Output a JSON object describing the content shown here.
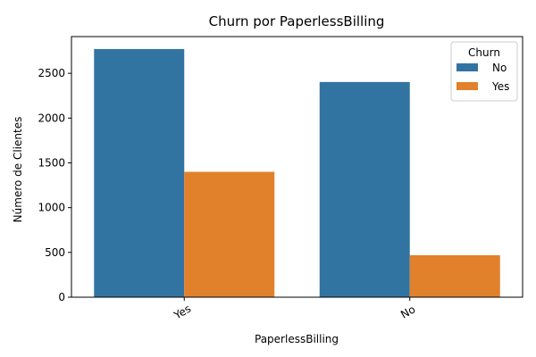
{
  "chart_data": {
    "type": "bar",
    "title": "Churn por PaperlessBilling",
    "xlabel": "PaperlessBilling",
    "ylabel": "Número de Clientes",
    "categories": [
      "Yes",
      "No"
    ],
    "series": [
      {
        "name": "No",
        "color": "#3274a1",
        "values": [
          2771,
          2403
        ]
      },
      {
        "name": "Yes",
        "color": "#e1812c",
        "values": [
          1400,
          469
        ]
      }
    ],
    "ylim": [
      0,
      2910
    ],
    "yticks": [
      0,
      500,
      1000,
      1500,
      2000,
      2500
    ],
    "legend": {
      "title": "Churn",
      "placement": "top-right"
    },
    "grid": false
  }
}
